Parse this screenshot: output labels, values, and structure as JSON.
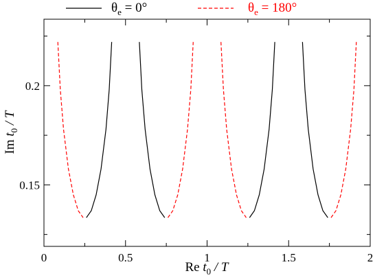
{
  "chart_data": {
    "type": "line",
    "xlabel": {
      "pre": "Re ",
      "var": "t",
      "sub": "0",
      "post": " / T"
    },
    "ylabel": {
      "pre": "Im ",
      "var": "t",
      "sub": "0",
      "post": " / T"
    },
    "xlim": [
      0,
      2
    ],
    "ylim": [
      0.119,
      0.2335
    ],
    "xticks": [
      0,
      0.5,
      1,
      1.5,
      2
    ],
    "xtick_labels": [
      "0",
      "0.5",
      "1",
      "1.5",
      "2"
    ],
    "yticks": [
      0.15,
      0.2
    ],
    "ytick_labels": [
      "0.15",
      "0.2"
    ],
    "legend_position": "top",
    "series": [
      {
        "name": "θe = 0°",
        "legend": {
          "sym": "θ",
          "sub": "e",
          "rest": " = 0°"
        },
        "color": "#000000",
        "style": "solid",
        "segments": [
          {
            "x": [
              0.26,
              0.29,
              0.32,
              0.35,
              0.38,
              0.4,
              0.415
            ],
            "y": [
              0.1335,
              0.137,
              0.145,
              0.158,
              0.178,
              0.198,
              0.222
            ]
          },
          {
            "x": [
              0.585,
              0.6,
              0.62,
              0.65,
              0.68,
              0.71,
              0.74
            ],
            "y": [
              0.222,
              0.198,
              0.178,
              0.158,
              0.145,
              0.137,
              0.1335
            ]
          },
          {
            "x": [
              1.26,
              1.29,
              1.32,
              1.35,
              1.38,
              1.4,
              1.415
            ],
            "y": [
              0.1335,
              0.137,
              0.145,
              0.158,
              0.178,
              0.198,
              0.222
            ]
          },
          {
            "x": [
              1.585,
              1.6,
              1.62,
              1.65,
              1.68,
              1.71,
              1.74
            ],
            "y": [
              0.222,
              0.198,
              0.178,
              0.158,
              0.145,
              0.137,
              0.1335
            ]
          }
        ]
      },
      {
        "name": "θe = 180°",
        "legend": {
          "sym": "θ",
          "sub": "e",
          "rest": " = 180°"
        },
        "color": "#ff0000",
        "style": "dashed",
        "segments": [
          {
            "x": [
              0.085,
              0.1,
              0.12,
              0.15,
              0.18,
              0.21,
              0.24
            ],
            "y": [
              0.222,
              0.198,
              0.178,
              0.158,
              0.145,
              0.137,
              0.1335
            ]
          },
          {
            "x": [
              0.76,
              0.79,
              0.82,
              0.85,
              0.88,
              0.9,
              0.915
            ],
            "y": [
              0.1335,
              0.137,
              0.145,
              0.158,
              0.178,
              0.198,
              0.222
            ]
          },
          {
            "x": [
              1.085,
              1.1,
              1.12,
              1.15,
              1.18,
              1.21,
              1.24
            ],
            "y": [
              0.222,
              0.198,
              0.178,
              0.158,
              0.145,
              0.137,
              0.1335
            ]
          },
          {
            "x": [
              1.76,
              1.79,
              1.82,
              1.85,
              1.88,
              1.9,
              1.915
            ],
            "y": [
              0.1335,
              0.137,
              0.145,
              0.158,
              0.178,
              0.198,
              0.222
            ]
          }
        ]
      }
    ]
  }
}
